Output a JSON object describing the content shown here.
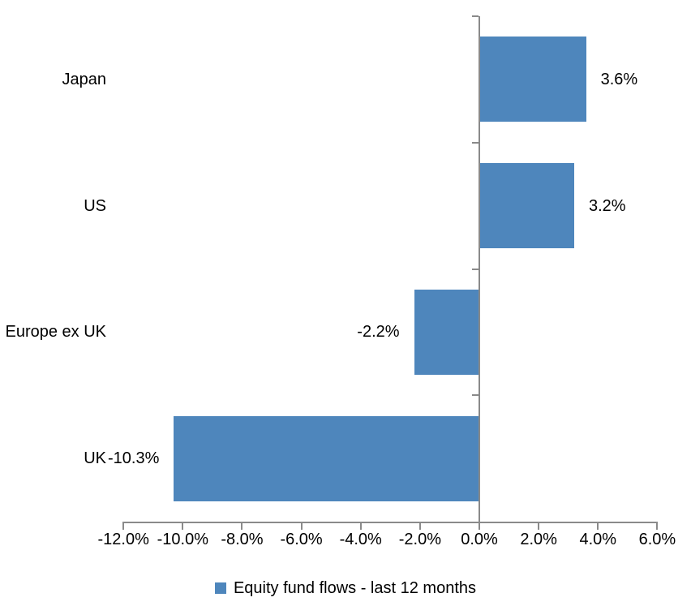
{
  "chart_data": {
    "type": "bar",
    "orientation": "horizontal",
    "title": "",
    "categories": [
      "Japan",
      "US",
      "Europe ex UK",
      "UK"
    ],
    "series": [
      {
        "name": "Equity fund flows - last 12 months",
        "values": [
          3.6,
          3.2,
          -2.2,
          -10.3
        ],
        "value_labels": [
          "3.6%",
          "3.2%",
          "-2.2%",
          "-10.3%"
        ]
      }
    ],
    "xlim": [
      -12,
      6
    ],
    "x_tick_step": 2,
    "x_tick_labels": [
      "-12.0%",
      "-10.0%",
      "-8.0%",
      "-6.0%",
      "-4.0%",
      "-2.0%",
      "0.0%",
      "2.0%",
      "4.0%",
      "6.0%"
    ],
    "grid": "off",
    "legend_position": "bottom",
    "colors": {
      "bar": "#4E86BC",
      "axis": "#8a8a8a",
      "text": "#000000",
      "background": "#ffffff"
    }
  },
  "legend": {
    "label": "Equity fund flows - last 12 months"
  }
}
